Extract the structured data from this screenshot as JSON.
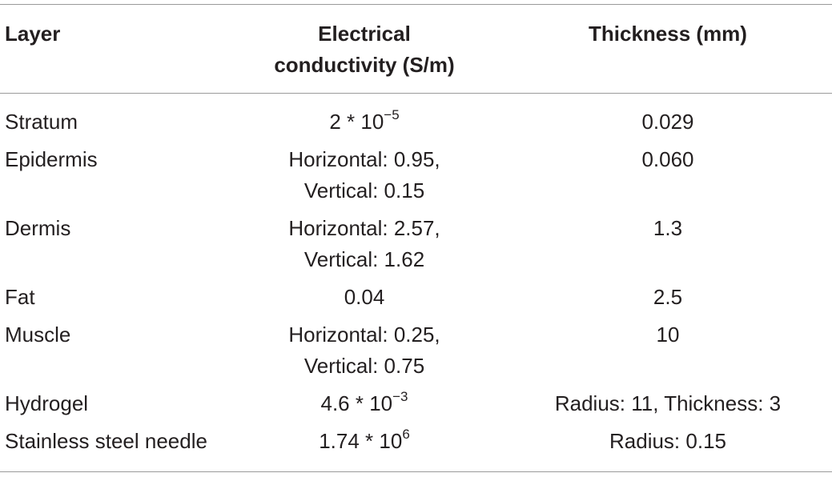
{
  "table": {
    "header": [
      [
        "Layer"
      ],
      [
        "Electrical",
        "conductivity (S/m)"
      ],
      [
        "Thickness (mm)"
      ]
    ],
    "rows": [
      [
        [
          "Stratum"
        ],
        [
          {
            "text": "2 * 10",
            "sup": "−5"
          }
        ],
        [
          "0.029"
        ]
      ],
      [
        [
          "Epidermis"
        ],
        [
          "Horizontal: 0.95,",
          "Vertical: 0.15"
        ],
        [
          "0.060"
        ]
      ],
      [
        [
          "Dermis"
        ],
        [
          "Horizontal: 2.57,",
          "Vertical: 1.62"
        ],
        [
          "1.3"
        ]
      ],
      [
        [
          "Fat"
        ],
        [
          "0.04"
        ],
        [
          "2.5"
        ]
      ],
      [
        [
          "Muscle"
        ],
        [
          "Horizontal: 0.25,",
          "Vertical: 0.75"
        ],
        [
          "10"
        ]
      ],
      [
        [
          "Hydrogel"
        ],
        [
          {
            "text": "4.6 * 10",
            "sup": "−3"
          }
        ],
        [
          "Radius: 11, Thickness: 3"
        ]
      ],
      [
        [
          "Stainless steel needle"
        ],
        [
          {
            "text": "1.74 * 10",
            "sup": "6"
          }
        ],
        [
          "Radius: 0.15"
        ]
      ]
    ]
  }
}
